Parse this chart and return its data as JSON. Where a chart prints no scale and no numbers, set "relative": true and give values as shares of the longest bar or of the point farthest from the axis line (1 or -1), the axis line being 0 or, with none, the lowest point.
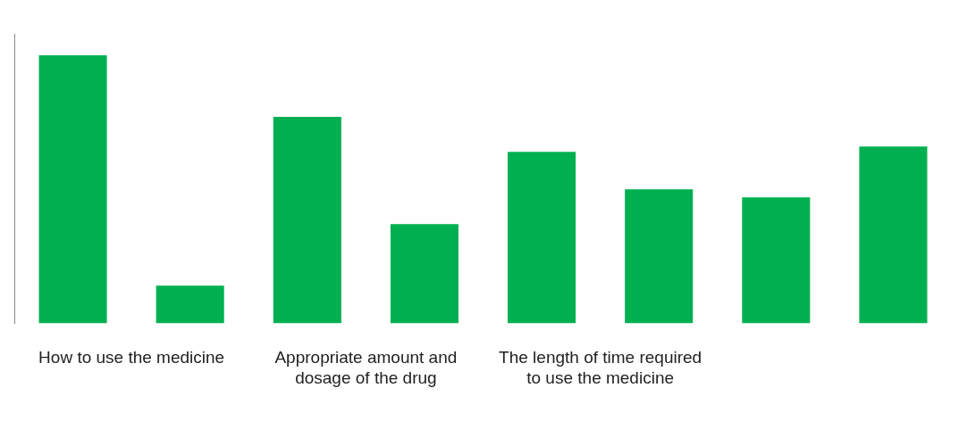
{
  "chart_data": {
    "type": "bar",
    "relative": true,
    "categories": [
      "How to use the medicine",
      "Appropriate amount and dosage of the drug",
      "The length of time required to use the medicine",
      null
    ],
    "series": [
      {
        "color": "#00b050",
        "values": [
          1,
          0.77,
          0.64,
          0.47
        ]
      },
      {
        "color": "#00b050",
        "values": [
          0.14,
          0.37,
          0.5,
          0.66
        ]
      }
    ],
    "grid": false
  }
}
